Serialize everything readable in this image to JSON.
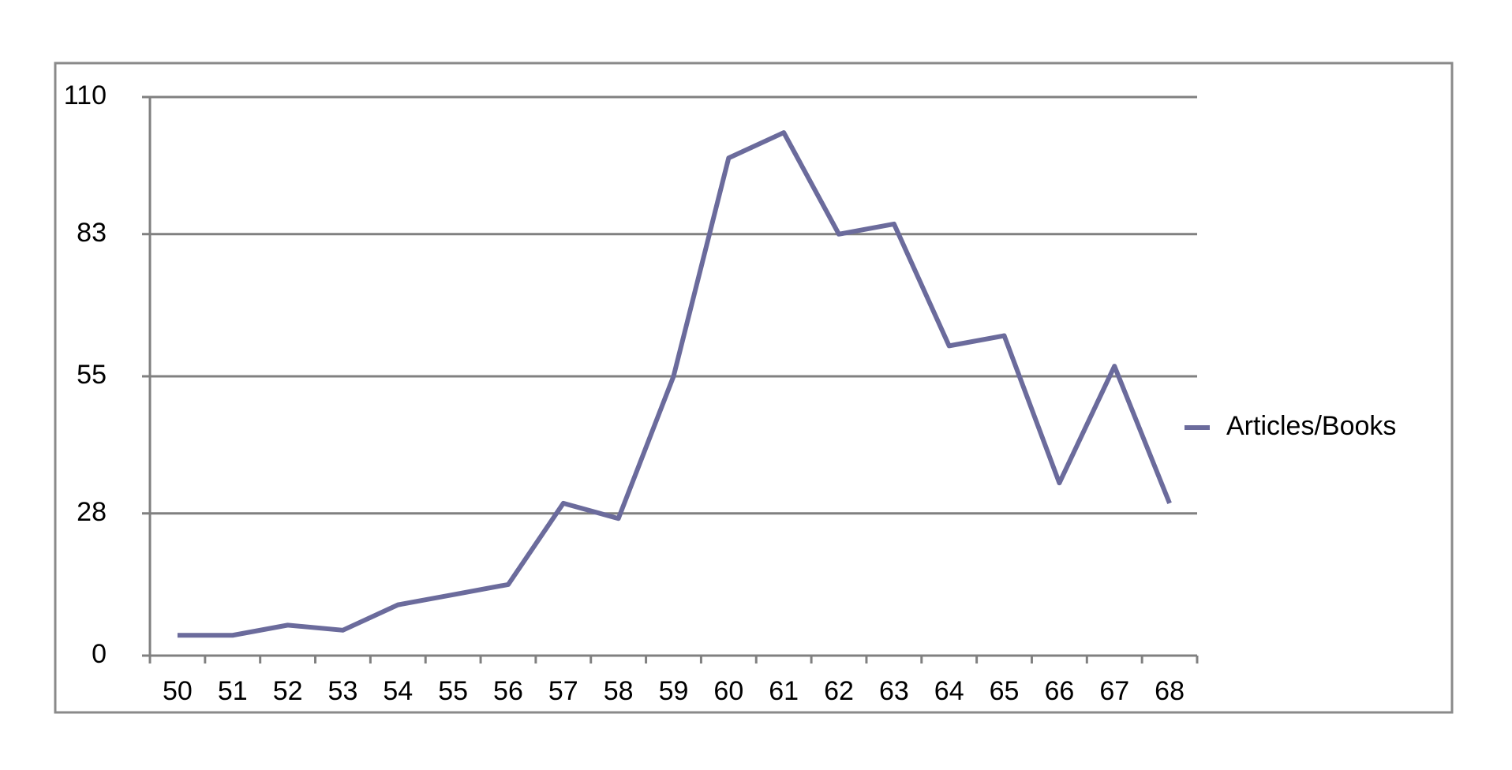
{
  "chart_data": {
    "type": "line",
    "categories": [
      "50",
      "51",
      "52",
      "53",
      "54",
      "55",
      "56",
      "57",
      "58",
      "59",
      "60",
      "61",
      "62",
      "63",
      "64",
      "65",
      "66",
      "67",
      "68"
    ],
    "series": [
      {
        "name": "Articles/Books",
        "color": "#6b6b9c",
        "values": [
          4,
          4,
          6,
          5,
          10,
          12,
          14,
          30,
          27,
          55,
          98,
          103,
          83,
          85,
          61,
          63,
          34,
          57,
          30
        ]
      }
    ],
    "ylim": [
      0,
      110
    ],
    "yticks": [
      0,
      28,
      55,
      83,
      110
    ],
    "grid": true,
    "legend": "right"
  }
}
